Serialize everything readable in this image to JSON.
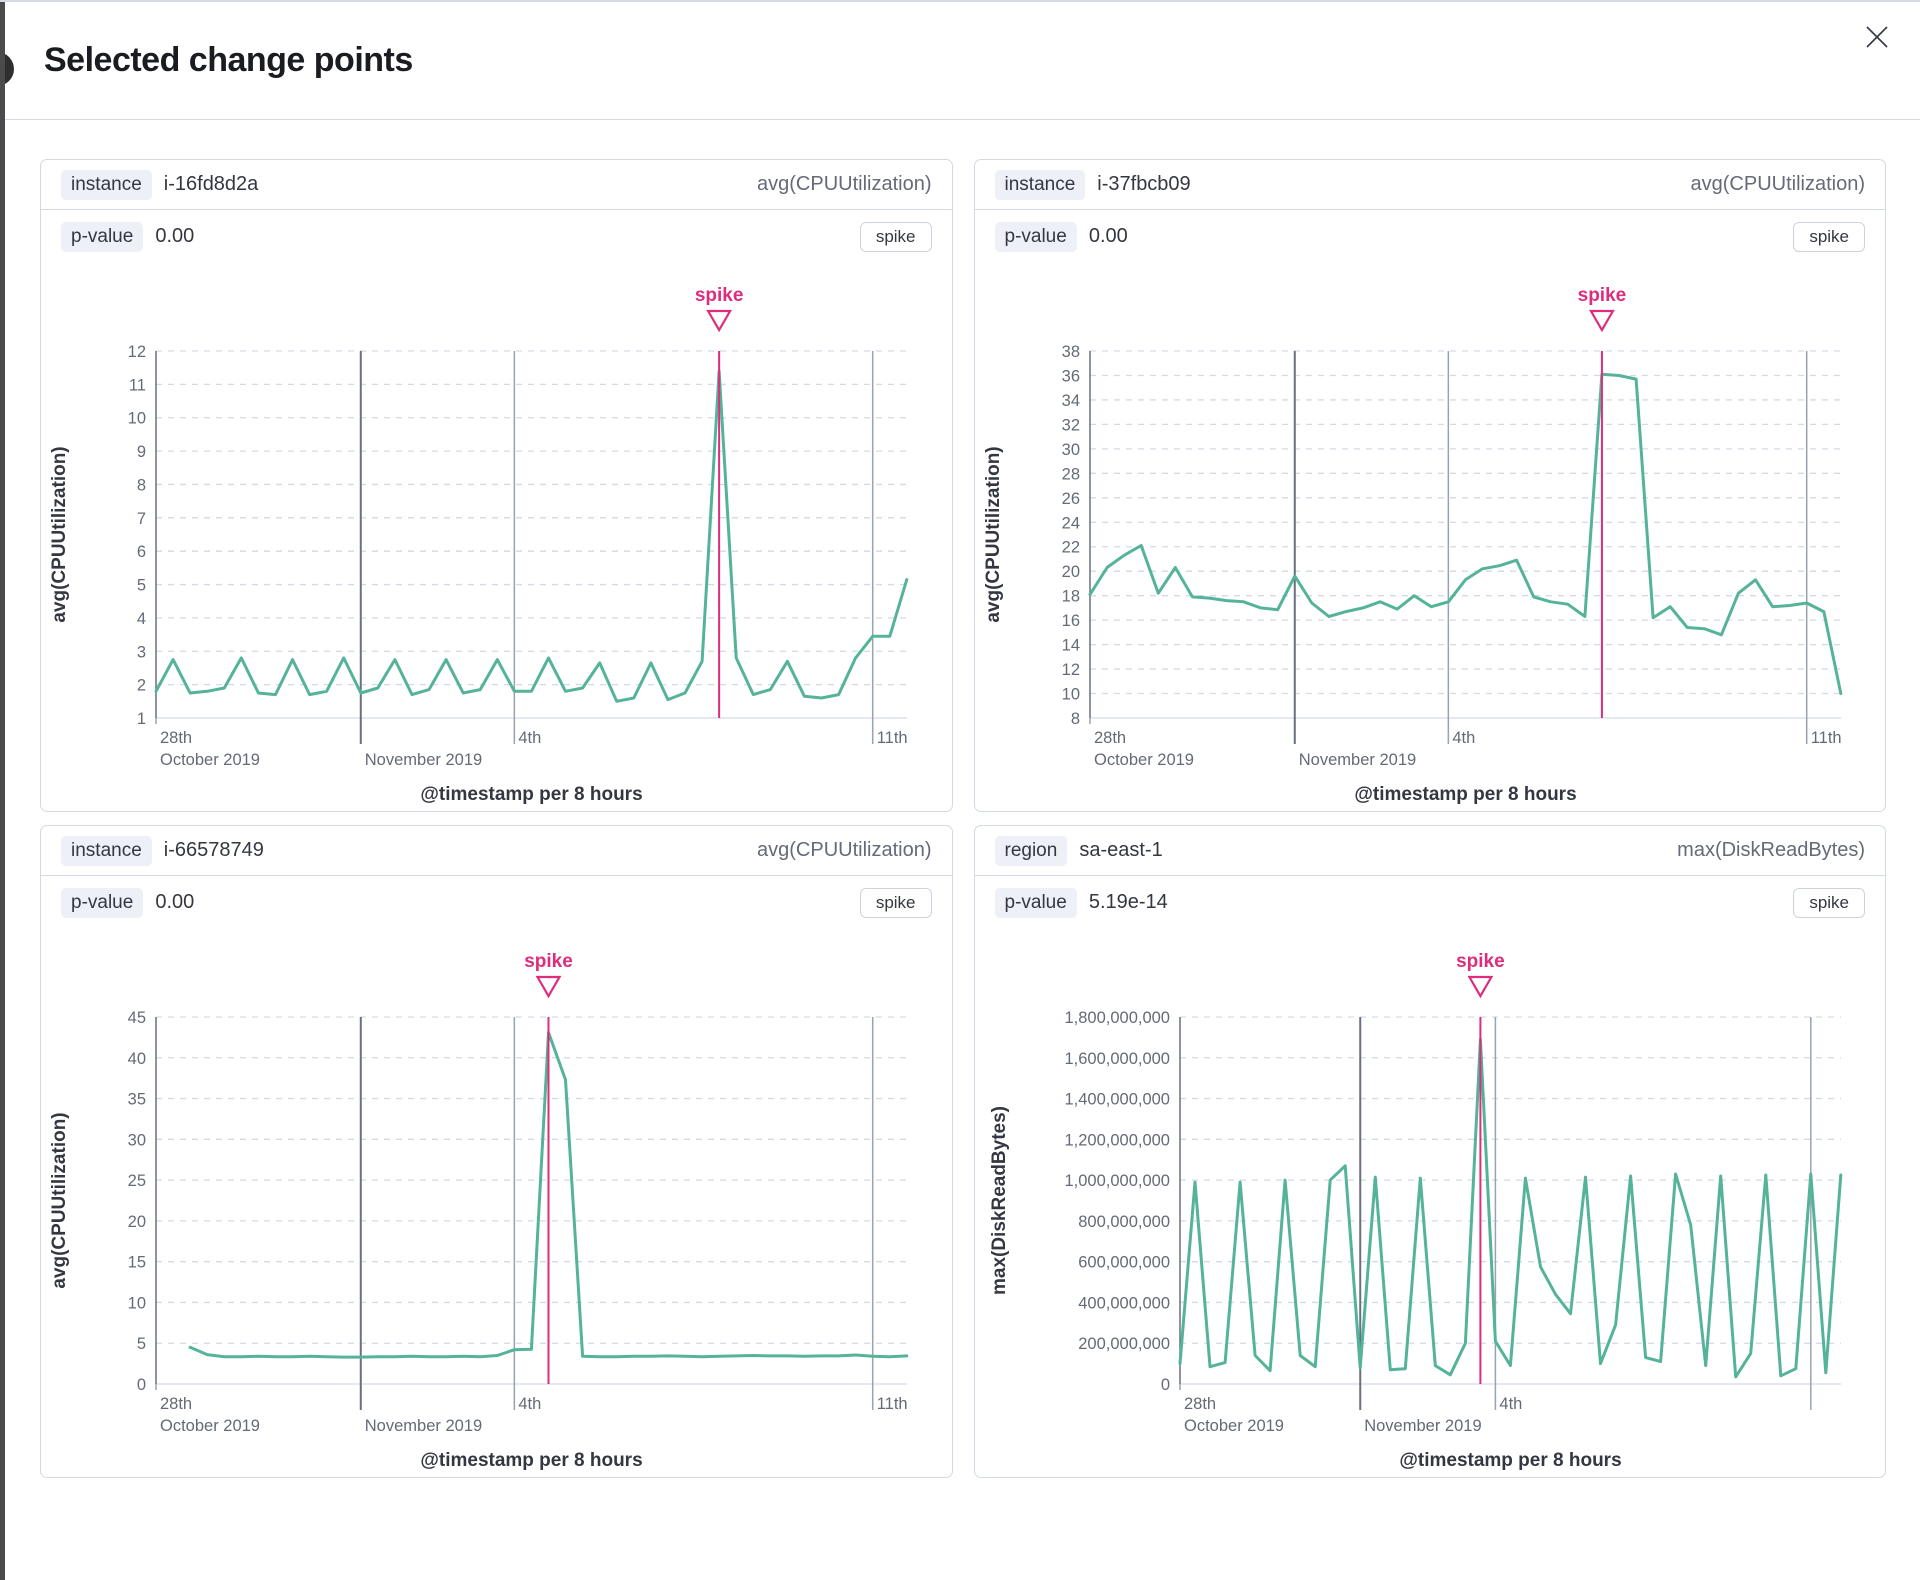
{
  "modal": {
    "title": "Selected change points",
    "close_icon": "x"
  },
  "panels": [
    {
      "field_label": "instance",
      "field_value": "i-16fd8d2a",
      "metric": "avg(CPUUtilization)",
      "p_label": "p-value",
      "p_value": "0.00",
      "type_button": "spike"
    },
    {
      "field_label": "instance",
      "field_value": "i-37fbcb09",
      "metric": "avg(CPUUtilization)",
      "p_label": "p-value",
      "p_value": "0.00",
      "type_button": "spike"
    },
    {
      "field_label": "instance",
      "field_value": "i-66578749",
      "metric": "avg(CPUUtilization)",
      "p_label": "p-value",
      "p_value": "0.00",
      "type_button": "spike"
    },
    {
      "field_label": "region",
      "field_value": "sa-east-1",
      "metric": "max(DiskReadBytes)",
      "p_label": "p-value",
      "p_value": "5.19e-14",
      "type_button": "spike"
    }
  ],
  "chart_data": [
    {
      "type": "line",
      "ylabel": "avg(CPUUtilization)",
      "xlabel": "@timestamp per 8 hours",
      "ylim": [
        1,
        12
      ],
      "ytick_step": 1,
      "y_format": "plain",
      "points_per_day": 3,
      "x_total_days": 14.67,
      "xticks": [
        {
          "day": 0,
          "top": "28th",
          "bottom": "October 2019",
          "grid": "none"
        },
        {
          "day": 4,
          "top": "",
          "bottom": "November 2019",
          "grid": "dark"
        },
        {
          "day": 7,
          "top": "4th",
          "bottom": "",
          "grid": "light"
        },
        {
          "day": 14,
          "top": "11th",
          "bottom": "",
          "grid": "light"
        }
      ],
      "annotation": {
        "label": "spike",
        "day": 11
      },
      "line_color": "#54b399",
      "annotation_color": "#dd2d7c",
      "values": [
        1.8,
        2.75,
        1.75,
        1.8,
        1.9,
        2.8,
        1.75,
        1.7,
        2.75,
        1.7,
        1.8,
        2.8,
        1.75,
        1.9,
        2.75,
        1.7,
        1.85,
        2.75,
        1.75,
        1.85,
        2.75,
        1.8,
        1.8,
        2.8,
        1.8,
        1.9,
        2.65,
        1.5,
        1.6,
        2.65,
        1.55,
        1.75,
        2.7,
        11.4,
        2.8,
        1.7,
        1.85,
        2.7,
        1.65,
        1.6,
        1.7,
        2.8,
        3.45,
        3.45,
        5.15
      ]
    },
    {
      "type": "line",
      "ylabel": "avg(CPUUtilization)",
      "xlabel": "@timestamp per 8 hours",
      "ylim": [
        8,
        38
      ],
      "ytick_step": 2,
      "y_format": "plain",
      "points_per_day": 3,
      "x_total_days": 14.67,
      "xticks": [
        {
          "day": 0,
          "top": "28th",
          "bottom": "October 2019",
          "grid": "none"
        },
        {
          "day": 4,
          "top": "",
          "bottom": "November 2019",
          "grid": "dark"
        },
        {
          "day": 7,
          "top": "4th",
          "bottom": "",
          "grid": "light"
        },
        {
          "day": 14,
          "top": "11th",
          "bottom": "",
          "grid": "light"
        }
      ],
      "annotation": {
        "label": "spike",
        "day": 10
      },
      "line_color": "#54b399",
      "annotation_color": "#dd2d7c",
      "values": [
        18.1,
        20.3,
        21.3,
        22.1,
        18.2,
        20.3,
        17.9,
        17.8,
        17.6,
        17.5,
        17.0,
        16.85,
        19.6,
        17.4,
        16.3,
        16.7,
        17.0,
        17.5,
        16.9,
        18.0,
        17.1,
        17.5,
        19.3,
        20.2,
        20.45,
        20.9,
        17.9,
        17.5,
        17.3,
        16.3,
        36.1,
        36.0,
        35.7,
        16.2,
        17.1,
        15.4,
        15.3,
        14.8,
        18.2,
        19.3,
        17.1,
        17.2,
        17.4,
        16.7,
        10.0
      ]
    },
    {
      "type": "line",
      "ylabel": "avg(CPUUtilization)",
      "xlabel": "@timestamp per 8 hours",
      "ylim": [
        0,
        45
      ],
      "ytick_step": 5,
      "y_format": "plain",
      "points_per_day": 3,
      "x_total_days": 14.67,
      "xticks": [
        {
          "day": 0,
          "top": "28th",
          "bottom": "October 2019",
          "grid": "none"
        },
        {
          "day": 4,
          "top": "",
          "bottom": "November 2019",
          "grid": "dark"
        },
        {
          "day": 7,
          "top": "4th",
          "bottom": "",
          "grid": "light"
        },
        {
          "day": 14,
          "top": "11th",
          "bottom": "",
          "grid": "light"
        }
      ],
      "annotation": {
        "label": "spike",
        "day": 7.667
      },
      "line_color": "#54b399",
      "annotation_color": "#dd2d7c",
      "values": [
        null,
        null,
        4.5,
        3.6,
        3.35,
        3.35,
        3.4,
        3.35,
        3.35,
        3.4,
        3.35,
        3.3,
        3.3,
        3.35,
        3.35,
        3.4,
        3.35,
        3.35,
        3.4,
        3.35,
        3.5,
        4.2,
        4.25,
        43.1,
        37.3,
        3.4,
        3.35,
        3.35,
        3.4,
        3.4,
        3.45,
        3.4,
        3.35,
        3.4,
        3.45,
        3.5,
        3.45,
        3.45,
        3.4,
        3.45,
        3.45,
        3.55,
        3.4,
        3.35,
        3.45
      ]
    },
    {
      "type": "line",
      "ylabel": "max(DiskReadBytes)",
      "xlabel": "@timestamp per 8 hours",
      "ylim": [
        0,
        1800000000
      ],
      "ytick_step": 200000000,
      "y_format": "thousands",
      "points_per_day": 3,
      "x_total_days": 14.67,
      "xticks": [
        {
          "day": 0,
          "top": "28th",
          "bottom": "October 2019",
          "grid": "none"
        },
        {
          "day": 4,
          "top": "",
          "bottom": "November 2019",
          "grid": "dark"
        },
        {
          "day": 7,
          "top": "4th",
          "bottom": "",
          "grid": "light"
        },
        {
          "day": 14,
          "top": "",
          "bottom": "",
          "grid": "light"
        }
      ],
      "annotation": {
        "label": "spike",
        "day": 6.667
      },
      "line_color": "#54b399",
      "annotation_color": "#dd2d7c",
      "values": [
        100000000,
        990000000,
        85000000,
        105000000,
        990000000,
        140000000,
        65000000,
        1000000000,
        140000000,
        85000000,
        1000000000,
        1070000000,
        80000000,
        1015000000,
        70000000,
        75000000,
        1010000000,
        90000000,
        45000000,
        200000000,
        1690000000,
        210000000,
        90000000,
        1010000000,
        575000000,
        440000000,
        345000000,
        1015000000,
        100000000,
        290000000,
        1020000000,
        130000000,
        110000000,
        1030000000,
        780000000,
        90000000,
        1020000000,
        35000000,
        150000000,
        1025000000,
        40000000,
        75000000,
        1030000000,
        55000000,
        1025000000
      ]
    }
  ]
}
